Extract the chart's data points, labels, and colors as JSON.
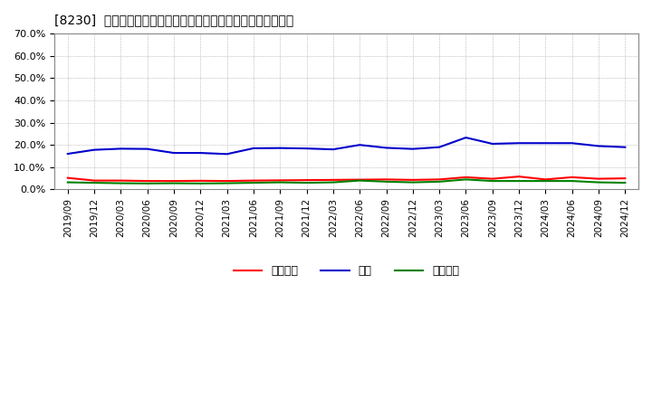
{
  "title": "[8230]  売上債権、在庫、買入債務の総資産に対する比率の推移",
  "x_labels": [
    "2019/09",
    "2019/12",
    "2020/03",
    "2020/06",
    "2020/09",
    "2020/12",
    "2021/03",
    "2021/06",
    "2021/09",
    "2021/12",
    "2022/03",
    "2022/06",
    "2022/09",
    "2022/12",
    "2023/03",
    "2023/06",
    "2023/09",
    "2023/12",
    "2024/03",
    "2024/06",
    "2024/09",
    "2024/12"
  ],
  "receivables": [
    5.2,
    4.0,
    4.0,
    3.8,
    3.8,
    3.9,
    3.8,
    4.0,
    4.1,
    4.2,
    4.3,
    4.4,
    4.5,
    4.3,
    4.5,
    5.5,
    4.8,
    5.8,
    4.5,
    5.5,
    4.8,
    5.0
  ],
  "inventory": [
    16.0,
    17.8,
    18.3,
    18.2,
    16.4,
    16.4,
    15.9,
    18.5,
    18.6,
    18.4,
    18.0,
    20.0,
    18.7,
    18.2,
    19.0,
    23.3,
    20.5,
    20.8,
    20.8,
    20.8,
    19.5,
    19.0
  ],
  "payables": [
    3.2,
    3.0,
    2.8,
    2.7,
    2.8,
    2.7,
    2.8,
    3.0,
    3.2,
    3.0,
    3.2,
    4.0,
    3.5,
    3.2,
    3.5,
    4.5,
    3.8,
    3.8,
    3.8,
    3.8,
    3.2,
    3.0
  ],
  "receivables_color": "#ff0000",
  "inventory_color": "#0000cc",
  "payables_color": "#008000",
  "ylim": [
    0,
    70
  ],
  "yticks": [
    0,
    10,
    20,
    30,
    40,
    50,
    60,
    70
  ],
  "ytick_labels": [
    "0.0%",
    "10.0%",
    "20.0%",
    "30.0%",
    "40.0%",
    "50.0%",
    "60.0%",
    "70.0%"
  ],
  "legend_labels": [
    "売上債権",
    "在庫",
    "買入債務"
  ],
  "bg_color": "#ffffff",
  "plot_bg_color": "#ffffff",
  "grid_color": "#aaaaaa",
  "line_width": 1.5
}
